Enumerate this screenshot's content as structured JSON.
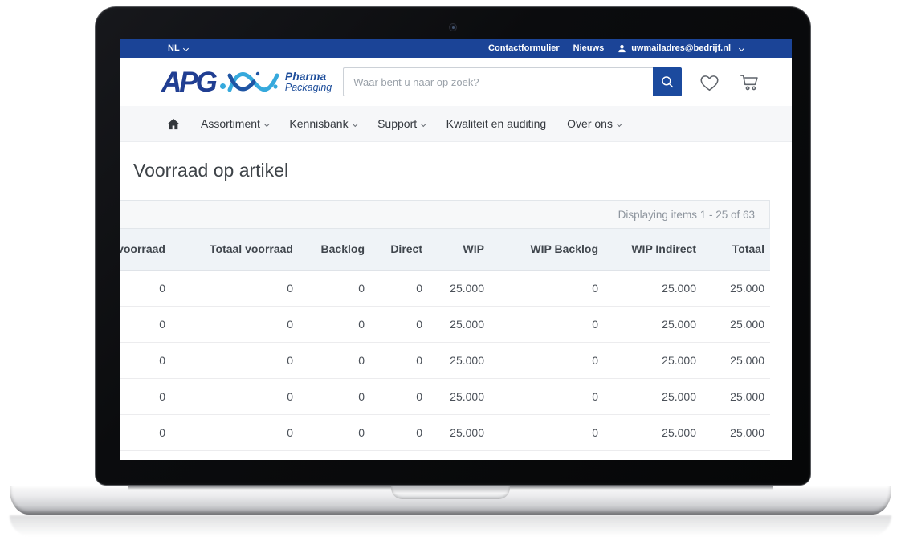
{
  "topbar": {
    "language": "NL",
    "links": [
      {
        "label": "Contactformulier"
      },
      {
        "label": "Nieuws"
      }
    ],
    "account_email": "uwmailadres@bedrijf.nl"
  },
  "header": {
    "logo_text": "APG",
    "logo_sub1": "Pharma",
    "logo_sub2": "Packaging",
    "search_placeholder": "Waar bent u naar op zoek?"
  },
  "nav": {
    "items": [
      {
        "label": "Assortiment",
        "has_dropdown": true
      },
      {
        "label": "Kennisbank",
        "has_dropdown": true
      },
      {
        "label": "Support",
        "has_dropdown": true
      },
      {
        "label": "Kwaliteit en auditing",
        "has_dropdown": false
      },
      {
        "label": "Over ons",
        "has_dropdown": true
      }
    ]
  },
  "page": {
    "title": "Voorraad op artikel"
  },
  "table": {
    "status": "Displaying items 1 - 25 of 63",
    "columns": [
      "voorraad",
      "Totaal voorraad",
      "Backlog",
      "Direct",
      "WIP",
      "WIP Backlog",
      "WIP Indirect",
      "Totaal"
    ],
    "rows": [
      [
        "0",
        "0",
        "0",
        "0",
        "25.000",
        "0",
        "25.000",
        "25.000"
      ],
      [
        "0",
        "0",
        "0",
        "0",
        "25.000",
        "0",
        "25.000",
        "25.000"
      ],
      [
        "0",
        "0",
        "0",
        "0",
        "25.000",
        "0",
        "25.000",
        "25.000"
      ],
      [
        "0",
        "0",
        "0",
        "0",
        "25.000",
        "0",
        "25.000",
        "25.000"
      ],
      [
        "0",
        "0",
        "0",
        "0",
        "25.000",
        "0",
        "25.000",
        "25.000"
      ]
    ]
  },
  "colors": {
    "topbar_blue": "#1b4497",
    "button_blue": "#1b4a9e",
    "logo_dark_blue": "#203e92",
    "logo_cyan": "#36a9dc"
  }
}
